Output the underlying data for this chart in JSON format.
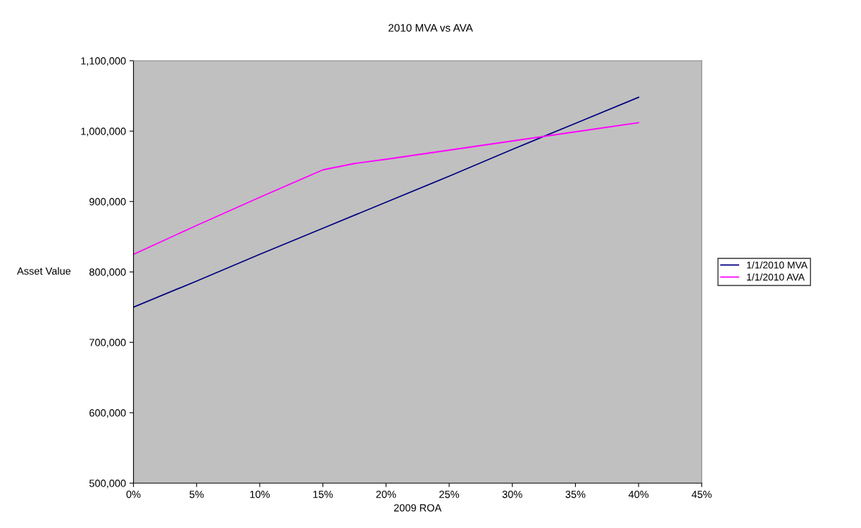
{
  "chart_data": {
    "type": "line",
    "title": "2010 MVA vs AVA",
    "xlabel": "2009 ROA",
    "ylabel": "Asset Value",
    "x": [
      0,
      5,
      10,
      15,
      20,
      25,
      30,
      35,
      40
    ],
    "series": [
      {
        "name": "1/1/2010 MVA",
        "color": "#000080",
        "values": [
          750000,
          787000,
          825000,
          862000,
          899000,
          936000,
          974000,
          1011000,
          1048000
        ]
      },
      {
        "name": "1/1/2010 AVA",
        "color": "#ff00ff",
        "x": [
          0,
          5,
          10,
          15,
          17.5,
          20,
          25,
          30,
          35,
          40
        ],
        "values": [
          825000,
          866000,
          906000,
          945000,
          954000,
          960000,
          973000,
          986000,
          999000,
          1012000
        ]
      }
    ],
    "xlim": [
      0,
      45
    ],
    "xticks": [
      {
        "value": 0,
        "label": "0%"
      },
      {
        "value": 5,
        "label": "5%"
      },
      {
        "value": 10,
        "label": "10%"
      },
      {
        "value": 15,
        "label": "15%"
      },
      {
        "value": 20,
        "label": "20%"
      },
      {
        "value": 25,
        "label": "25%"
      },
      {
        "value": 30,
        "label": "30%"
      },
      {
        "value": 35,
        "label": "35%"
      },
      {
        "value": 40,
        "label": "40%"
      },
      {
        "value": 45,
        "label": "45%"
      }
    ],
    "ylim": [
      500000,
      1100000
    ],
    "yticks": [
      {
        "value": 500000,
        "label": "500,000"
      },
      {
        "value": 600000,
        "label": "600,000"
      },
      {
        "value": 700000,
        "label": "700,000"
      },
      {
        "value": 800000,
        "label": "800,000"
      },
      {
        "value": 900000,
        "label": "900,000"
      },
      {
        "value": 1000000,
        "label": "1,000,000"
      },
      {
        "value": 1100000,
        "label": "1,100,000"
      }
    ],
    "grid": false,
    "legend": "right",
    "marker": "none",
    "line_style": "solid"
  }
}
